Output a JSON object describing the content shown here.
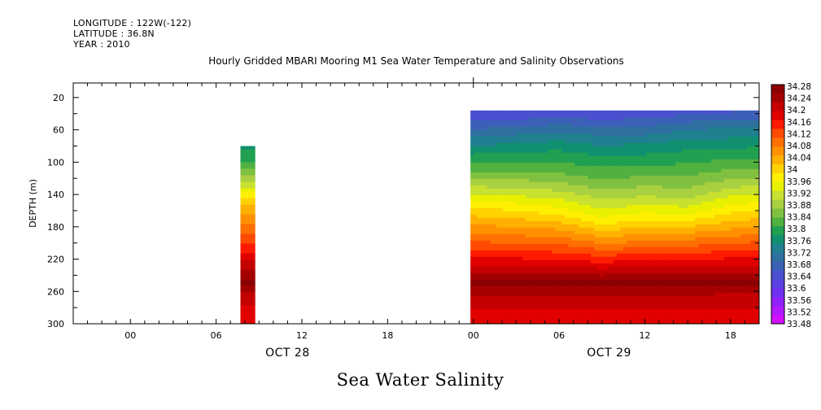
{
  "header": {
    "longitude": "LONGITUDE : 122W(-122)",
    "latitude": "LATITUDE : 36.8N",
    "year": "YEAR : 2010"
  },
  "chart_data": {
    "type": "heatmap",
    "title": "Hourly Gridded MBARI Mooring M1 Sea Water Temperature and Salinity Observations",
    "subtitle": "Sea Water Salinity",
    "ylabel": "DEPTH (m)",
    "xlabel": "",
    "x_time_range_hours": [
      -4,
      44
    ],
    "x_ticks": [
      {
        "hour": 0,
        "label": "00"
      },
      {
        "hour": 6,
        "label": "06"
      },
      {
        "hour": 12,
        "label": "12"
      },
      {
        "hour": 18,
        "label": "18"
      },
      {
        "hour": 24,
        "label": "00"
      },
      {
        "hour": 30,
        "label": "06"
      },
      {
        "hour": 36,
        "label": "12"
      },
      {
        "hour": 42,
        "label": "18"
      }
    ],
    "date_labels": [
      {
        "hour": 11,
        "label": "OCT 28"
      },
      {
        "hour": 33.5,
        "label": "OCT 29"
      }
    ],
    "ylim": [
      300,
      2
    ],
    "y_ticks": [
      20,
      60,
      100,
      140,
      180,
      220,
      260,
      300
    ],
    "y_tick_labels": [
      "20",
      "60",
      "100",
      "140",
      "180",
      "220",
      "260",
      "300"
    ],
    "colorbar": {
      "min": 33.46,
      "max": 34.3,
      "labels": [
        "34.28",
        "34.24",
        "34.2",
        "34.16",
        "34.12",
        "34.08",
        "34.04",
        "34",
        "33.96",
        "33.92",
        "33.88",
        "33.84",
        "33.8",
        "33.76",
        "33.72",
        "33.68",
        "33.64",
        "33.6",
        "33.56",
        "33.52",
        "33.48"
      ],
      "colors": [
        "#8b0000",
        "#a50000",
        "#c40000",
        "#e00000",
        "#ff1a00",
        "#ff4a00",
        "#ff7000",
        "#ff9000",
        "#ffb000",
        "#ffd200",
        "#fff000",
        "#e8f000",
        "#c8e030",
        "#a8d040",
        "#80c040",
        "#50b040",
        "#20a050",
        "#109070",
        "#208090",
        "#3070a0",
        "#3c60b8",
        "#4a50d0",
        "#5a40e0",
        "#7030f0",
        "#9020f8",
        "#b018ff",
        "#d010ff"
      ]
    },
    "depths": [
      36,
      60,
      80,
      100,
      120,
      140,
      160,
      180,
      200,
      220,
      240,
      250,
      260,
      280,
      300
    ],
    "segments": [
      {
        "hours": [
          7.7,
          8.7
        ],
        "columns": [
          {
            "hour": 8.2,
            "salinity": [
              null,
              null,
              33.76,
              33.8,
              33.88,
              33.97,
              34.04,
              34.09,
              34.14,
              34.2,
              34.26,
              34.28,
              34.24,
              34.2,
              34.18
            ]
          }
        ]
      },
      {
        "hours": [
          23.8,
          44
        ],
        "columns": [
          {
            "hour": 24,
            "salinity": [
              33.62,
              33.68,
              33.74,
              33.8,
              33.86,
              33.93,
              34.0,
              34.06,
              34.12,
              34.18,
              34.25,
              34.28,
              34.25,
              34.21,
              34.18
            ]
          },
          {
            "hour": 27,
            "salinity": [
              33.61,
              33.69,
              33.75,
              33.8,
              33.86,
              33.92,
              33.99,
              34.05,
              34.11,
              34.18,
              34.25,
              34.28,
              34.25,
              34.21,
              34.18
            ]
          },
          {
            "hour": 30,
            "salinity": [
              33.62,
              33.7,
              33.76,
              33.8,
              33.85,
              33.91,
              33.97,
              34.04,
              34.11,
              34.17,
              34.25,
              34.28,
              34.25,
              34.21,
              34.18
            ]
          },
          {
            "hour": 33,
            "salinity": [
              33.61,
              33.69,
              33.74,
              33.79,
              33.83,
              33.88,
              33.93,
              34.0,
              34.08,
              34.16,
              34.24,
              34.28,
              34.25,
              34.21,
              34.18
            ]
          },
          {
            "hour": 36,
            "salinity": [
              33.62,
              33.69,
              33.75,
              33.79,
              33.84,
              33.89,
              33.95,
              34.02,
              34.09,
              34.17,
              34.25,
              34.28,
              34.25,
              34.21,
              34.18
            ]
          },
          {
            "hour": 39,
            "salinity": [
              33.63,
              33.71,
              33.76,
              33.8,
              33.84,
              33.88,
              33.94,
              34.02,
              34.1,
              34.17,
              34.25,
              34.29,
              34.25,
              34.21,
              34.18
            ]
          },
          {
            "hour": 42,
            "salinity": [
              33.64,
              33.72,
              33.76,
              33.81,
              33.86,
              33.92,
              33.98,
              34.04,
              34.11,
              34.18,
              34.25,
              34.28,
              34.24,
              34.21,
              34.18
            ]
          },
          {
            "hour": 44,
            "salinity": [
              33.64,
              33.72,
              33.77,
              33.81,
              33.87,
              33.93,
              33.99,
              34.05,
              34.12,
              34.18,
              34.25,
              34.28,
              34.24,
              34.21,
              34.18
            ]
          }
        ]
      }
    ],
    "grid": false,
    "legend": "colorbar-right"
  }
}
